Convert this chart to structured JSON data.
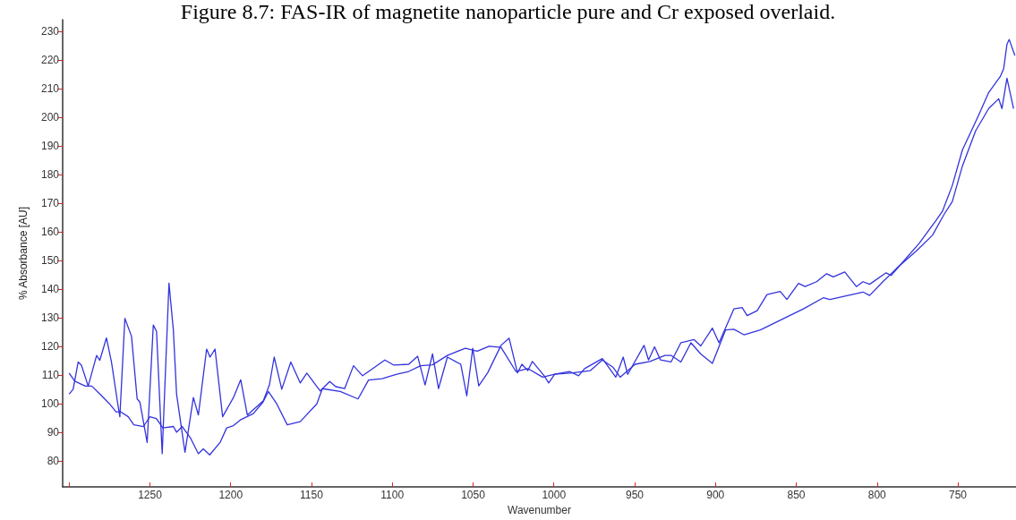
{
  "chart_data": {
    "type": "line",
    "title": "Figure 8.7: FAS-IR of magnetite nanoparticle pure and Cr exposed overlaid.",
    "xlabel": "Wavenumber",
    "ylabel": "% Absorbance [AU]",
    "xlim": [
      1304,
      714
    ],
    "xticks": [
      {
        "value": 1300,
        "label": null
      },
      1250,
      1200,
      1150,
      1100,
      1050,
      1000,
      950,
      900,
      850,
      800,
      750
    ],
    "ylim": [
      71,
      234
    ],
    "yticks": [
      80,
      90,
      100,
      110,
      120,
      130,
      140,
      150,
      160,
      170,
      180,
      190,
      200,
      210,
      220,
      230
    ],
    "grid": false,
    "marker": "none",
    "line_style": "solid",
    "series": [
      {
        "color": "#3333dd",
        "x": [
          1300,
          1297.5,
          1294.4,
          1292.4,
          1288.2,
          1283,
          1281,
          1276.9,
          1273.8,
          1269.6,
          1268.6,
          1265.5,
          1261.4,
          1257.9,
          1256.2,
          1251.7,
          1247.9,
          1245.9,
          1242.4,
          1238.2,
          1235.5,
          1233.5,
          1228.3,
          1223.1,
          1220,
          1214.9,
          1212.8,
          1209.7,
          1205,
          1198.3,
          1193.8,
          1189.7,
          1179.8,
          1176,
          1173.1,
          1168.4,
          1162.8,
          1157,
          1152.9,
          1144.6,
          1138.7,
          1135,
          1129.5,
          1124,
          1118.4,
          1113.8,
          1104.6,
          1099,
          1089.8,
          1084.3,
          1079.7,
          1075.1,
          1071.4,
          1065.9,
          1057.6,
          1053.9,
          1050.2,
          1046.5,
          1041,
          1032.7,
          1027.7,
          1022.5,
          1019.8,
          1016.1,
          1013.3,
          1006,
          1003.2,
          999.5,
          990.3,
          984.7,
          981,
          970,
          961.7,
          957.1,
          954.3,
          944.2,
          941.4,
          937.7,
          934,
          927.5,
          921.4,
          913.2,
          909.1,
          901.9,
          897.8,
          888.6,
          883.5,
          880.4,
          874.2,
          868.1,
          859.9,
          855.8,
          848.6,
          844.5,
          837.4,
          831.2,
          827.1,
          820,
          812.8,
          808.7,
          804.6,
          794.4,
          791.3,
          773.9,
          763.6,
          759.5,
          753.4,
          747.2,
          737,
          730.9,
          723.7,
          721.6,
          719.6,
          718.2,
          714.7
        ],
        "values": [
          103.4,
          105.1,
          114.6,
          113.5,
          106.2,
          116.9,
          115.2,
          123,
          114.6,
          98.9,
          95.5,
          129.8,
          123.6,
          101.7,
          100.6,
          86.5,
          127.5,
          125.3,
          82.6,
          142.1,
          125.8,
          103.4,
          83.1,
          102.2,
          96.1,
          119.1,
          116.3,
          119.1,
          95.5,
          102.2,
          108.4,
          96.1,
          101.1,
          106.7,
          116.3,
          105.1,
          114.6,
          107.3,
          110.7,
          104.5,
          107.8,
          106,
          105.3,
          113.3,
          109.8,
          111.6,
          115.3,
          113.5,
          113.8,
          116.6,
          106.6,
          117.4,
          105.3,
          116.3,
          113.8,
          102.8,
          119.4,
          106.3,
          110.8,
          120.4,
          122.9,
          110.8,
          113.8,
          111.6,
          114.8,
          109.8,
          107.3,
          110.3,
          111.3,
          109.8,
          112.3,
          115.8,
          109.3,
          116.3,
          110.3,
          120.4,
          115.3,
          119.9,
          115.3,
          114.6,
          121.3,
          122.4,
          120.2,
          126.4,
          121.3,
          133.1,
          133.6,
          130.8,
          132.5,
          138.1,
          139.2,
          136.4,
          142,
          140.9,
          142.6,
          145.4,
          144.3,
          146,
          140.9,
          142.6,
          141.7,
          145.7,
          144.8,
          156,
          163.9,
          167.2,
          176.2,
          188.5,
          200.8,
          208.6,
          214.2,
          217,
          225.4,
          227.1,
          221.5
        ]
      },
      {
        "color": "#3333dd",
        "x": [
          1300,
          1296.5,
          1290,
          1286,
          1281,
          1275,
          1271,
          1268,
          1263.4,
          1260,
          1254,
          1250,
          1246,
          1242,
          1235.5,
          1233.5,
          1230,
          1225,
          1220,
          1217,
          1213,
          1206.6,
          1202.5,
          1198.3,
          1194,
          1186,
          1180,
          1176.7,
          1171.5,
          1165,
          1157,
          1146.7,
          1143.3,
          1132.2,
          1121.2,
          1114.7,
          1106.4,
          1097.2,
          1089.8,
          1082.5,
          1075.1,
          1065.9,
          1054.8,
          1047.4,
          1040.1,
          1032.7,
          1023.5,
          1016.1,
          1007,
          999.5,
          988.4,
          977.4,
          970,
          963.5,
          959,
          949.7,
          940.5,
          931.3,
          927.5,
          921.4,
          915.2,
          909.1,
          901.9,
          893.7,
          888.6,
          882.4,
          872.2,
          862,
          845.6,
          833.3,
          829.2,
          808.7,
          804.6,
          796.4,
          788.2,
          775.9,
          765.7,
          758.5,
          753.4,
          747.2,
          739,
          730.9,
          724.7,
          722.7,
          719.6,
          715.5
        ],
        "values": [
          110.7,
          107.9,
          106.2,
          106.2,
          103.4,
          100,
          97.2,
          97.2,
          95.5,
          92.7,
          92.1,
          95.5,
          94.9,
          91.6,
          92.1,
          90.1,
          92.1,
          88.2,
          82.6,
          84.3,
          82.2,
          86.5,
          91.6,
          92.4,
          94.4,
          96.6,
          100.6,
          104.3,
          100,
          92.7,
          93.8,
          100,
          105.3,
          104.3,
          101.7,
          108.3,
          108.8,
          110.3,
          111.3,
          113.3,
          113.6,
          116.9,
          119.4,
          118.4,
          120.1,
          119.7,
          111.3,
          112.3,
          109.3,
          110.3,
          110.8,
          111.6,
          115.3,
          112.8,
          109.3,
          113.8,
          114.8,
          116.9,
          116.9,
          114.6,
          121.3,
          117.4,
          114.1,
          125.8,
          126,
          124.1,
          125.8,
          128.6,
          133.1,
          137,
          136.4,
          139,
          137.8,
          142.6,
          147.1,
          153.2,
          158.8,
          166.1,
          170.6,
          182.9,
          195.2,
          203,
          206.4,
          203,
          213.6,
          203
        ]
      }
    ]
  }
}
